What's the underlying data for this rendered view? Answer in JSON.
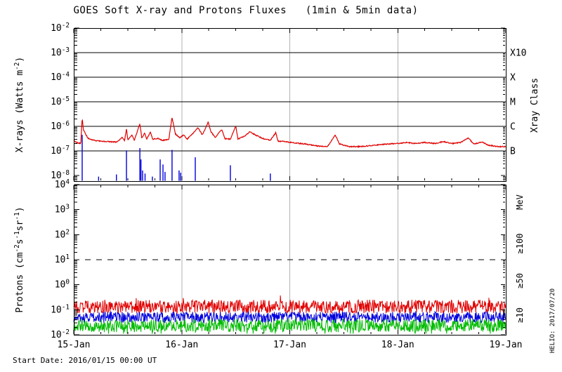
{
  "title": "GOES Soft X-ray and Protons Fluxes   (1min & 5min data)",
  "footer": {
    "start_date_label": "Start Date: 2016/01/15 00:00 UT"
  },
  "watermark": "HELIO: 2017/07/20",
  "colors": {
    "xray_long": "#e00000",
    "xray_short": "#0000dd",
    "proton_ge10": "#e00000",
    "proton_ge50": "#0000dd",
    "proton_ge100": "#00bb00",
    "grid": "#b3b3b3",
    "frame": "#000000"
  },
  "xaxis": {
    "tick_labels": [
      "15-Jan",
      "16-Jan",
      "17-Jan",
      "18-Jan",
      "19-Jan"
    ],
    "span_days": 4,
    "minor_ticks_per_day": 4
  },
  "chart_data": [
    {
      "id": "xray-flux-panel",
      "type": "line",
      "ylabel": "X-rays (Watts m^-2^)",
      "yticks_exponents": [
        -2,
        -3,
        -4,
        -5,
        -6,
        -7,
        -8
      ],
      "ylim": [
        5e-09,
        0.01
      ],
      "xlim_days": [
        0,
        4
      ],
      "grid": {
        "vertical_days": [
          1,
          2,
          3
        ],
        "horizontal_exponents": [
          -3,
          -4,
          -5,
          -6,
          -7
        ]
      },
      "right_axis": {
        "title": "Xray Class",
        "labels": [
          {
            "text": "X10",
            "exponent": -3
          },
          {
            "text": "X",
            "exponent": -4
          },
          {
            "text": "M",
            "exponent": -5
          },
          {
            "text": "C",
            "exponent": -6
          },
          {
            "text": "B",
            "exponent": -7
          }
        ]
      },
      "series": [
        {
          "name": "xray-long-wavelength",
          "color": "#e00000",
          "style": "line",
          "noise_decades": 0.04,
          "keypoints": [
            [
              0.0,
              2.6e-07
            ],
            [
              0.04,
              2.1e-07
            ],
            [
              0.065,
              2e-07
            ],
            [
              0.078,
              2.2e-06
            ],
            [
              0.09,
              7e-07
            ],
            [
              0.13,
              3.3e-07
            ],
            [
              0.2,
              2.6e-07
            ],
            [
              0.3,
              2.4e-07
            ],
            [
              0.4,
              2.3e-07
            ],
            [
              0.45,
              3.6e-07
            ],
            [
              0.47,
              2.5e-07
            ],
            [
              0.488,
              8e-07
            ],
            [
              0.5,
              2.8e-07
            ],
            [
              0.54,
              4.5e-07
            ],
            [
              0.56,
              2.7e-07
            ],
            [
              0.612,
              1.3e-06
            ],
            [
              0.63,
              3.2e-07
            ],
            [
              0.655,
              5.5e-07
            ],
            [
              0.675,
              3e-07
            ],
            [
              0.71,
              6e-07
            ],
            [
              0.73,
              3e-07
            ],
            [
              0.78,
              3.2e-07
            ],
            [
              0.82,
              2.7e-07
            ],
            [
              0.88,
              3e-07
            ],
            [
              0.91,
              2.3e-06
            ],
            [
              0.94,
              5e-07
            ],
            [
              0.98,
              3.4e-07
            ],
            [
              1.02,
              4.5e-07
            ],
            [
              1.05,
              3e-07
            ],
            [
              1.1,
              5e-07
            ],
            [
              1.15,
              9e-07
            ],
            [
              1.19,
              4.5e-07
            ],
            [
              1.245,
              1.5e-06
            ],
            [
              1.27,
              6e-07
            ],
            [
              1.31,
              3.6e-07
            ],
            [
              1.37,
              7.5e-07
            ],
            [
              1.4,
              3.2e-07
            ],
            [
              1.45,
              3e-07
            ],
            [
              1.5,
              1.05e-06
            ],
            [
              1.52,
              3e-07
            ],
            [
              1.58,
              4e-07
            ],
            [
              1.63,
              6e-07
            ],
            [
              1.68,
              4.5e-07
            ],
            [
              1.75,
              3.2e-07
            ],
            [
              1.82,
              2.7e-07
            ],
            [
              1.87,
              5.5e-07
            ],
            [
              1.89,
              2.5e-07
            ],
            [
              1.95,
              2.4e-07
            ],
            [
              2.05,
              2.1e-07
            ],
            [
              2.15,
              1.9e-07
            ],
            [
              2.25,
              1.6e-07
            ],
            [
              2.35,
              1.5e-07
            ],
            [
              2.42,
              4.5e-07
            ],
            [
              2.46,
              1.9e-07
            ],
            [
              2.55,
              1.5e-07
            ],
            [
              2.65,
              1.5e-07
            ],
            [
              2.78,
              1.7e-07
            ],
            [
              2.9,
              1.9e-07
            ],
            [
              3.0,
              2e-07
            ],
            [
              3.08,
              2.2e-07
            ],
            [
              3.15,
              2e-07
            ],
            [
              3.25,
              2.2e-07
            ],
            [
              3.35,
              2e-07
            ],
            [
              3.42,
              2.4e-07
            ],
            [
              3.5,
              2e-07
            ],
            [
              3.58,
              2.2e-07
            ],
            [
              3.655,
              3.4e-07
            ],
            [
              3.7,
              1.9e-07
            ],
            [
              3.78,
              2.3e-07
            ],
            [
              3.84,
              1.7e-07
            ],
            [
              3.92,
              1.5e-07
            ],
            [
              4.0,
              1.5e-07
            ]
          ]
        },
        {
          "name": "xray-short-wavelength",
          "color": "#0000dd",
          "style": "impulse",
          "spikes": [
            [
              0.078,
              4.5e-07
            ],
            [
              0.23,
              9e-09
            ],
            [
              0.395,
              1.1e-08
            ],
            [
              0.488,
              1.05e-07
            ],
            [
              0.612,
              1.3e-07
            ],
            [
              0.622,
              4.5e-08
            ],
            [
              0.637,
              1.6e-08
            ],
            [
              0.66,
              1.2e-08
            ],
            [
              0.728,
              9e-09
            ],
            [
              0.8,
              4.5e-08
            ],
            [
              0.826,
              2.8e-08
            ],
            [
              0.845,
              1.4e-08
            ],
            [
              0.91,
              1.1e-07
            ],
            [
              0.975,
              1.6e-08
            ],
            [
              0.99,
              1.3e-08
            ],
            [
              1.125,
              5.5e-08
            ],
            [
              1.45,
              2.6e-08
            ],
            [
              1.82,
              1.2e-08
            ]
          ]
        }
      ]
    },
    {
      "id": "proton-flux-panel",
      "type": "line",
      "ylabel": "Protons (cm^-2^s^-1^sr^-1^)",
      "yticks_exponents": [
        4,
        3,
        2,
        1,
        0,
        -1,
        -2
      ],
      "ylim": [
        0.01,
        10000.0
      ],
      "xlim_days": [
        0,
        4
      ],
      "grid": {
        "vertical_days": [
          1,
          2,
          3
        ]
      },
      "threshold_line": {
        "value": 10,
        "style": "dashed"
      },
      "right_axis": {
        "title": "MeV",
        "labels": [
          {
            "text": "≥100",
            "color": "#00bb00"
          },
          {
            "text": "≥50",
            "color": "#0000dd"
          },
          {
            "text": "≥10",
            "color": "#e00000"
          }
        ]
      },
      "series": [
        {
          "name": "protons-ge10MeV",
          "color": "#e00000",
          "baseline": 0.135,
          "noise_decades": 0.27
        },
        {
          "name": "protons-ge50MeV",
          "color": "#0000dd",
          "baseline": 0.05,
          "noise_decades": 0.22
        },
        {
          "name": "protons-ge100MeV",
          "color": "#00bb00",
          "baseline": 0.023,
          "noise_decades": 0.26
        }
      ]
    }
  ]
}
